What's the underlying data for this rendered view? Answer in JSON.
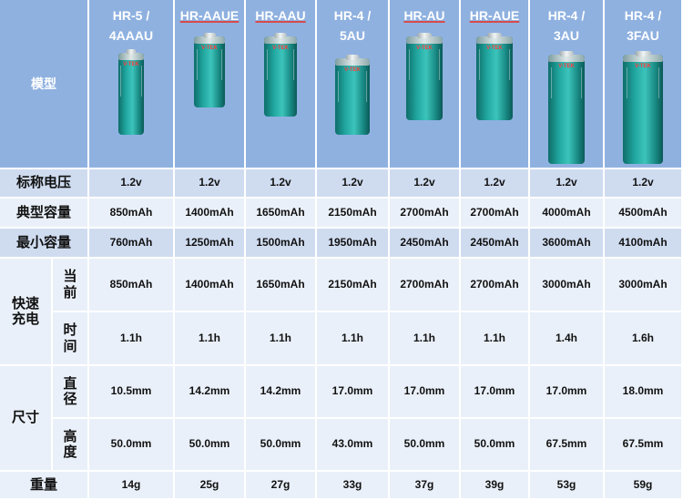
{
  "row_labels": {
    "model": "模型",
    "voltage": "标称电压",
    "typical_capacity": "典型容量",
    "min_capacity": "最小容量",
    "fast_charge": "快速\n充电",
    "fast_charge_current": "当\n前",
    "fast_charge_time": "时\n间",
    "size": "尺寸",
    "diameter": "直\n径",
    "height": "高\n度",
    "weight": "重量"
  },
  "models": [
    {
      "name": "HR-5 /\n4AAAU",
      "underlined": false,
      "voltage": "1.2v",
      "typical": "850mAh",
      "min": "760mAh",
      "current": "850mAh",
      "time": "1.1h",
      "diameter": "10.5mm",
      "height": "50.0mm",
      "weight": "14g"
    },
    {
      "name": "HR-AAUE",
      "underlined": true,
      "voltage": "1.2v",
      "typical": "1400mAh",
      "min": "1250mAh",
      "current": "1400mAh",
      "time": "1.1h",
      "diameter": "14.2mm",
      "height": "50.0mm",
      "weight": "25g"
    },
    {
      "name": "HR-AAU",
      "underlined": true,
      "voltage": "1.2v",
      "typical": "1650mAh",
      "min": "1500mAh",
      "current": "1650mAh",
      "time": "1.1h",
      "diameter": "14.2mm",
      "height": "50.0mm",
      "weight": "27g"
    },
    {
      "name": "HR-4 /\n5AU",
      "underlined": false,
      "voltage": "1.2v",
      "typical": "2150mAh",
      "min": "1950mAh",
      "current": "2150mAh",
      "time": "1.1h",
      "diameter": "17.0mm",
      "height": "43.0mm",
      "weight": "33g"
    },
    {
      "name": "HR-AU",
      "underlined": true,
      "voltage": "1.2v",
      "typical": "2700mAh",
      "min": "2450mAh",
      "current": "2700mAh",
      "time": "1.1h",
      "diameter": "17.0mm",
      "height": "50.0mm",
      "weight": "37g"
    },
    {
      "name": "HR-AUE",
      "underlined": true,
      "voltage": "1.2v",
      "typical": "2700mAh",
      "min": "2450mAh",
      "current": "2700mAh",
      "time": "1.1h",
      "diameter": "17.0mm",
      "height": "50.0mm",
      "weight": "39g"
    },
    {
      "name": "HR-4 /\n3AU",
      "underlined": false,
      "voltage": "1.2v",
      "typical": "4000mAh",
      "min": "3600mAh",
      "current": "3000mAh",
      "time": "1.4h",
      "diameter": "17.0mm",
      "height": "67.5mm",
      "weight": "53g"
    },
    {
      "name": "HR-4 /\n3FAU",
      "underlined": false,
      "voltage": "1.2v",
      "typical": "4500mAh",
      "min": "4100mAh",
      "current": "3000mAh",
      "time": "1.6h",
      "diameter": "18.0mm",
      "height": "67.5mm",
      "weight": "59g"
    }
  ],
  "battery_brand": "V-TEK",
  "colors": {
    "header": "#8fb1e0",
    "stripe_dark": "#cfdcf0",
    "stripe_light": "#eaf0f9",
    "battery": "#21a7a0",
    "brand_underline": "#d84b4b"
  }
}
